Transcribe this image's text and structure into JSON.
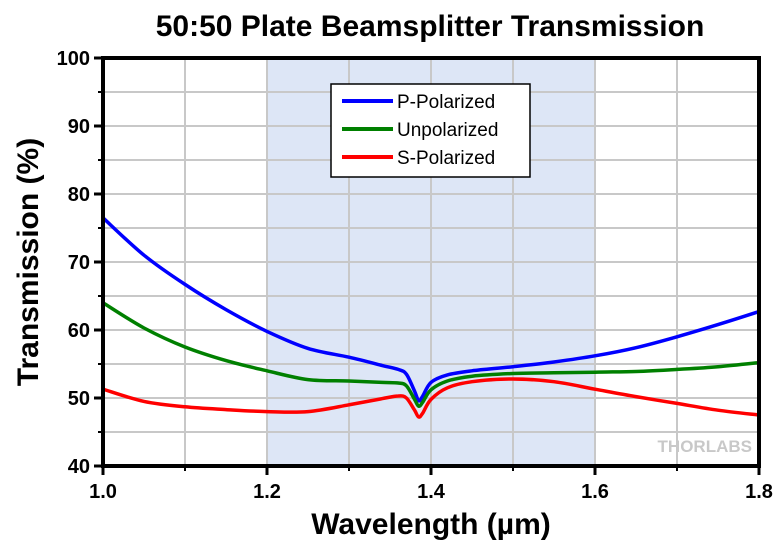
{
  "chart_data": {
    "type": "line",
    "title": "50:50 Plate Beamsplitter Transmission",
    "xlabel": "Wavelength (µm)",
    "ylabel": "Transmission (%)",
    "xlim": [
      1.0,
      1.8
    ],
    "ylim": [
      40,
      100
    ],
    "xticks": [
      1.0,
      1.2,
      1.4,
      1.6,
      1.8
    ],
    "xtick_labels": [
      "1.0",
      "1.2",
      "1.4",
      "1.6",
      "1.8"
    ],
    "xminor": [
      1.1,
      1.3,
      1.5,
      1.7
    ],
    "yticks": [
      40,
      50,
      60,
      70,
      80,
      90,
      100
    ],
    "ytick_labels": [
      "40",
      "50",
      "60",
      "70",
      "80",
      "90",
      "100"
    ],
    "yminor": [
      45,
      55,
      65,
      75,
      85,
      95
    ],
    "grid": true,
    "shaded_region": {
      "x": [
        1.2,
        1.6
      ],
      "color": "#dde6f6"
    },
    "legend_position": "top-center",
    "watermark": "THORLABS",
    "series": [
      {
        "name": "P-Polarized",
        "color": "#0000ff",
        "x": [
          1.0,
          1.05,
          1.1,
          1.15,
          1.2,
          1.25,
          1.3,
          1.34,
          1.36,
          1.37,
          1.38,
          1.385,
          1.39,
          1.4,
          1.42,
          1.45,
          1.5,
          1.55,
          1.6,
          1.65,
          1.7,
          1.75,
          1.8
        ],
        "values": [
          76.5,
          71.0,
          66.7,
          63.0,
          59.8,
          57.3,
          56.0,
          54.8,
          54.2,
          53.5,
          51.0,
          49.6,
          50.3,
          52.3,
          53.4,
          54.0,
          54.6,
          55.3,
          56.2,
          57.4,
          59.0,
          60.8,
          62.7
        ]
      },
      {
        "name": "Unpolarized",
        "color": "#008000",
        "x": [
          1.0,
          1.05,
          1.1,
          1.15,
          1.2,
          1.25,
          1.3,
          1.34,
          1.36,
          1.37,
          1.38,
          1.385,
          1.39,
          1.4,
          1.42,
          1.45,
          1.5,
          1.55,
          1.6,
          1.65,
          1.7,
          1.75,
          1.8
        ],
        "values": [
          64.0,
          60.3,
          57.5,
          55.5,
          54.0,
          52.7,
          52.5,
          52.3,
          52.2,
          51.8,
          49.8,
          48.8,
          49.4,
          51.2,
          52.5,
          53.2,
          53.6,
          53.7,
          53.8,
          53.9,
          54.2,
          54.6,
          55.2
        ]
      },
      {
        "name": "S-Polarized",
        "color": "#ff0000",
        "x": [
          1.0,
          1.05,
          1.1,
          1.15,
          1.2,
          1.25,
          1.3,
          1.34,
          1.36,
          1.37,
          1.38,
          1.385,
          1.39,
          1.4,
          1.42,
          1.45,
          1.5,
          1.55,
          1.6,
          1.65,
          1.7,
          1.75,
          1.8
        ],
        "values": [
          51.3,
          49.5,
          48.7,
          48.3,
          48.0,
          48.0,
          49.0,
          49.9,
          50.3,
          50.0,
          48.2,
          47.2,
          47.8,
          49.8,
          51.5,
          52.4,
          52.8,
          52.4,
          51.3,
          50.2,
          49.2,
          48.2,
          47.5
        ]
      }
    ]
  }
}
